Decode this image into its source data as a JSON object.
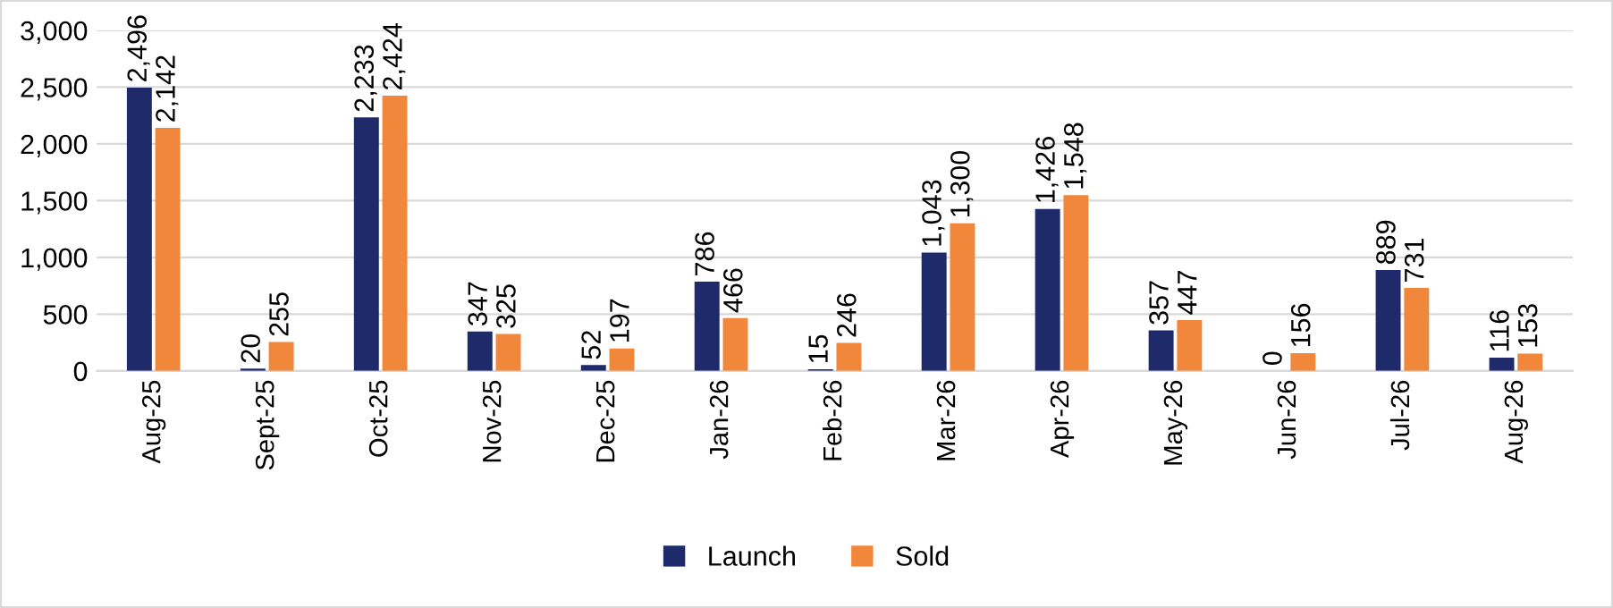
{
  "chart_data": {
    "type": "bar",
    "categories": [
      "Aug-25",
      "Sept-25",
      "Oct-25",
      "Nov-25",
      "Dec-25",
      "Jan-26",
      "Feb-26",
      "Mar-26",
      "Apr-26",
      "May-26",
      "Jun-26",
      "Jul-26",
      "Aug-26"
    ],
    "series": [
      {
        "name": "Launch",
        "color": "#1f2a6b",
        "values": [
          2496,
          20,
          2233,
          347,
          52,
          786,
          15,
          1043,
          1426,
          357,
          0,
          889,
          116
        ],
        "value_labels": [
          "2,496",
          "20",
          "2,233",
          "347",
          "52",
          "786",
          "15",
          "1,043",
          "1,426",
          "357",
          "0",
          "889",
          "116"
        ]
      },
      {
        "name": "Sold",
        "color": "#f0873a",
        "values": [
          2142,
          255,
          2424,
          325,
          197,
          466,
          246,
          1300,
          1548,
          447,
          156,
          731,
          153
        ],
        "value_labels": [
          "2,142",
          "255",
          "2,424",
          "325",
          "197",
          "466",
          "246",
          "1,300",
          "1,548",
          "447",
          "156",
          "731",
          "153"
        ]
      }
    ],
    "ylim": [
      0,
      3000
    ],
    "yticks": [
      {
        "value": 0,
        "label": "0"
      },
      {
        "value": 500,
        "label": "500"
      },
      {
        "value": 1000,
        "label": "1,000"
      },
      {
        "value": 1500,
        "label": "1,500"
      },
      {
        "value": 2000,
        "label": "2,000"
      },
      {
        "value": 2500,
        "label": "2,500"
      },
      {
        "value": 3000,
        "label": "3,000"
      }
    ],
    "grid": "y",
    "legend": "bottom"
  }
}
